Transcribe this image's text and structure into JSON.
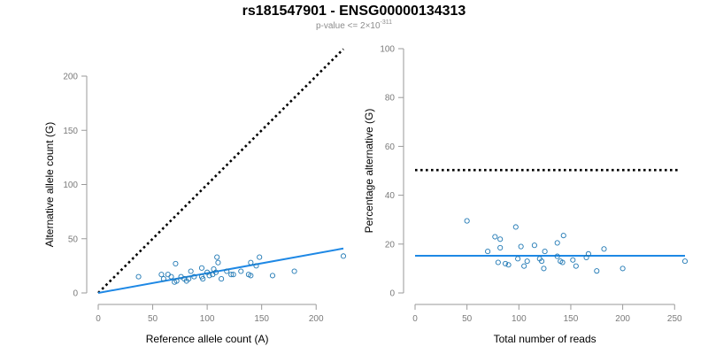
{
  "header": {
    "title": "rs181547901 - ENSG00000134313",
    "subtitle_prefix": "p-value <= 2×10",
    "subtitle_exp": "-311"
  },
  "colors": {
    "points": "#1f78b4",
    "fit": "#1e88e5",
    "reference": "#000000"
  },
  "chart_data": [
    {
      "type": "scatter",
      "xlabel": "Reference allele count (A)",
      "ylabel": "Alternative allele count (G)",
      "xlim": [
        0,
        225
      ],
      "ylim": [
        0,
        200
      ],
      "xticks": [
        0,
        50,
        100,
        150,
        200
      ],
      "yticks": [
        0,
        50,
        100,
        150,
        200
      ],
      "grid": false,
      "points": [
        [
          37,
          15
        ],
        [
          58,
          17
        ],
        [
          60,
          13
        ],
        [
          64,
          17
        ],
        [
          67,
          15
        ],
        [
          70,
          10
        ],
        [
          71,
          27
        ],
        [
          72,
          11
        ],
        [
          76,
          15
        ],
        [
          79,
          13
        ],
        [
          81,
          11
        ],
        [
          83,
          13
        ],
        [
          85,
          20
        ],
        [
          88,
          15
        ],
        [
          95,
          23
        ],
        [
          95,
          15
        ],
        [
          96,
          13
        ],
        [
          100,
          19
        ],
        [
          102,
          16
        ],
        [
          105,
          17
        ],
        [
          106,
          22
        ],
        [
          108,
          19
        ],
        [
          109,
          33
        ],
        [
          110,
          28
        ],
        [
          113,
          13
        ],
        [
          118,
          20
        ],
        [
          122,
          17
        ],
        [
          124,
          17
        ],
        [
          131,
          20
        ],
        [
          138,
          17
        ],
        [
          140,
          28
        ],
        [
          140,
          16
        ],
        [
          145,
          25
        ],
        [
          148,
          33
        ],
        [
          160,
          16
        ],
        [
          180,
          20
        ],
        [
          225,
          34
        ]
      ],
      "fit_line": [
        [
          0,
          0
        ],
        [
          225,
          41
        ]
      ],
      "reference_line": [
        [
          0,
          0
        ],
        [
          225,
          225
        ]
      ]
    },
    {
      "type": "scatter",
      "xlabel": "Total number of reads",
      "ylabel": "Percentage alternative (G)",
      "xlim": [
        0,
        260
      ],
      "ylim": [
        0,
        100
      ],
      "xticks": [
        0,
        50,
        100,
        150,
        200,
        250
      ],
      "yticks": [
        0,
        20,
        40,
        60,
        80,
        100
      ],
      "grid": false,
      "points": [
        [
          50,
          29.5
        ],
        [
          70,
          17
        ],
        [
          77,
          23
        ],
        [
          80,
          12.5
        ],
        [
          82,
          22
        ],
        [
          82,
          18.5
        ],
        [
          87,
          12
        ],
        [
          90,
          11.5
        ],
        [
          97,
          27
        ],
        [
          99,
          14
        ],
        [
          102,
          19
        ],
        [
          105,
          11
        ],
        [
          108,
          13
        ],
        [
          115,
          19.5
        ],
        [
          120,
          14
        ],
        [
          122,
          13
        ],
        [
          124,
          10
        ],
        [
          125,
          17
        ],
        [
          137,
          20.5
        ],
        [
          137,
          15
        ],
        [
          140,
          13
        ],
        [
          142,
          12.5
        ],
        [
          143,
          23.5
        ],
        [
          152,
          13.5
        ],
        [
          155,
          11
        ],
        [
          165,
          14.5
        ],
        [
          167,
          16
        ],
        [
          175,
          9
        ],
        [
          182,
          18
        ],
        [
          200,
          10
        ],
        [
          260,
          13
        ]
      ],
      "fit_line": [
        [
          0,
          15.2
        ],
        [
          260,
          15.2
        ]
      ],
      "reference_line": [
        [
          0,
          50.3
        ],
        [
          255,
          50.3
        ]
      ]
    }
  ]
}
